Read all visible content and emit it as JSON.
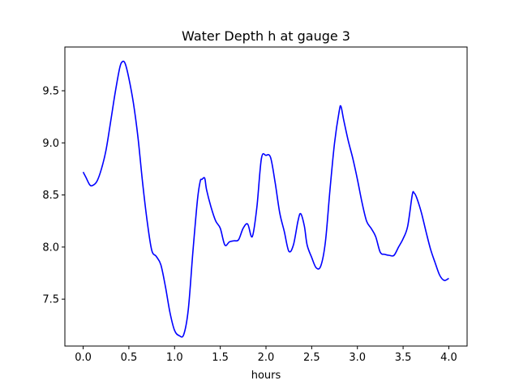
{
  "chart_data": {
    "type": "line",
    "title": "Water Depth h at gauge 3",
    "xlabel": "hours",
    "ylabel": "",
    "xlim": [
      -0.2,
      4.2
    ],
    "ylim": [
      7.05,
      9.92
    ],
    "xticks": [
      0.0,
      0.5,
      1.0,
      1.5,
      2.0,
      2.5,
      3.0,
      3.5,
      4.0
    ],
    "xtick_labels": [
      "0.0",
      "0.5",
      "1.0",
      "1.5",
      "2.0",
      "2.5",
      "3.0",
      "3.5",
      "4.0"
    ],
    "yticks": [
      7.5,
      8.0,
      8.5,
      9.0,
      9.5
    ],
    "ytick_labels": [
      "7.5",
      "8.0",
      "8.5",
      "9.0",
      "9.5"
    ],
    "grid": false,
    "series": [
      {
        "color": "#0000ff",
        "x": [
          0.0,
          0.03,
          0.07,
          0.1,
          0.15,
          0.2,
          0.25,
          0.3,
          0.35,
          0.4,
          0.43,
          0.46,
          0.5,
          0.55,
          0.6,
          0.65,
          0.7,
          0.75,
          0.8,
          0.85,
          0.9,
          0.95,
          1.0,
          1.05,
          1.1,
          1.15,
          1.2,
          1.25,
          1.28,
          1.3,
          1.33,
          1.35,
          1.4,
          1.45,
          1.5,
          1.55,
          1.6,
          1.65,
          1.7,
          1.75,
          1.8,
          1.85,
          1.9,
          1.95,
          2.0,
          2.05,
          2.1,
          2.15,
          2.2,
          2.25,
          2.3,
          2.35,
          2.38,
          2.42,
          2.45,
          2.5,
          2.55,
          2.6,
          2.65,
          2.7,
          2.75,
          2.8,
          2.82,
          2.85,
          2.9,
          2.95,
          3.0,
          3.05,
          3.1,
          3.15,
          3.2,
          3.25,
          3.3,
          3.35,
          3.4,
          3.45,
          3.5,
          3.55,
          3.6,
          3.62,
          3.65,
          3.7,
          3.75,
          3.8,
          3.85,
          3.9,
          3.95,
          4.0
        ],
        "values": [
          8.72,
          8.67,
          8.6,
          8.59,
          8.63,
          8.75,
          8.93,
          9.2,
          9.48,
          9.72,
          9.78,
          9.76,
          9.62,
          9.38,
          9.05,
          8.62,
          8.25,
          7.97,
          7.91,
          7.83,
          7.62,
          7.37,
          7.2,
          7.15,
          7.16,
          7.4,
          7.95,
          8.45,
          8.63,
          8.65,
          8.66,
          8.55,
          8.38,
          8.25,
          8.18,
          8.02,
          8.05,
          8.06,
          8.07,
          8.18,
          8.22,
          8.1,
          8.38,
          8.85,
          8.88,
          8.86,
          8.62,
          8.33,
          8.15,
          7.96,
          8.02,
          8.25,
          8.32,
          8.2,
          8.02,
          7.9,
          7.8,
          7.82,
          8.05,
          8.55,
          9.0,
          9.3,
          9.35,
          9.22,
          9.02,
          8.85,
          8.65,
          8.43,
          8.25,
          8.18,
          8.1,
          7.95,
          7.93,
          7.92,
          7.92,
          8.0,
          8.08,
          8.2,
          8.5,
          8.52,
          8.47,
          8.33,
          8.15,
          7.98,
          7.85,
          7.73,
          7.68,
          7.7
        ]
      }
    ]
  }
}
